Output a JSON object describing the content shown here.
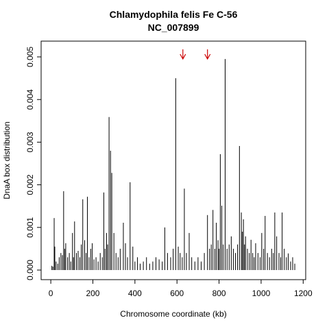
{
  "chart_data": {
    "type": "spike",
    "title": "Chlamydophila felis Fe C-56",
    "subtitle": "NC_007899",
    "x_label": "Chromosome coordinate (kb)",
    "y_label": "DnaA box distribution",
    "color": "#000000",
    "x": [
      5,
      10,
      16,
      19,
      25,
      33,
      40,
      48,
      55,
      61,
      66,
      71,
      80,
      88,
      95,
      103,
      108,
      113,
      122,
      130,
      138,
      145,
      152,
      161,
      168,
      174,
      182,
      190,
      197,
      205,
      215,
      225,
      235,
      245,
      252,
      258,
      265,
      270,
      277,
      284,
      290,
      300,
      310,
      320,
      330,
      345,
      355,
      365,
      377,
      390,
      400,
      412,
      425,
      440,
      455,
      470,
      485,
      500,
      515,
      530,
      542,
      555,
      570,
      582,
      594,
      606,
      615,
      625,
      635,
      645,
      658,
      670,
      685,
      700,
      715,
      730,
      745,
      755,
      763,
      771,
      780,
      787,
      795,
      800,
      806,
      813,
      820,
      829,
      838,
      848,
      858,
      868,
      878,
      888,
      897,
      906,
      911,
      916,
      921,
      926,
      935,
      944,
      952,
      960,
      967,
      974,
      985,
      995,
      1003,
      1012,
      1019,
      1030,
      1040,
      1050,
      1058,
      1065,
      1074,
      1085,
      1093,
      1100,
      1110,
      1120,
      1129,
      1140,
      1150,
      1160
    ],
    "values": [
      0.0001,
      8e-05,
      0.00122,
      0.00055,
      0.0002,
      0.00015,
      0.0003,
      0.0004,
      0.00035,
      0.00185,
      0.0005,
      0.00063,
      0.0003,
      0.0004,
      0.0002,
      0.00087,
      0.0003,
      0.00114,
      0.0004,
      0.00045,
      0.0003,
      0.0006,
      0.00166,
      0.0007,
      0.0004,
      0.00172,
      0.0003,
      0.0005,
      0.00063,
      0.00025,
      0.0003,
      0.0002,
      0.0004,
      0.0003,
      0.00182,
      0.0005,
      0.00087,
      0.0006,
      0.00359,
      0.0028,
      0.00228,
      0.00087,
      0.0004,
      0.0003,
      0.0005,
      0.00111,
      0.00063,
      0.0003,
      0.00206,
      0.00055,
      0.0002,
      0.0003,
      0.00015,
      0.0002,
      0.0003,
      0.00015,
      0.0002,
      0.0003,
      0.00025,
      0.0002,
      0.001,
      0.0004,
      0.0003,
      0.0005,
      0.0045,
      0.00055,
      0.0004,
      0.0003,
      0.00191,
      0.0004,
      0.00087,
      0.0003,
      0.0002,
      0.0003,
      0.0002,
      0.0004,
      0.00129,
      0.0005,
      0.0006,
      0.00141,
      0.0005,
      0.00111,
      0.0007,
      0.0005,
      0.00272,
      0.00151,
      0.0006,
      0.00495,
      0.0005,
      0.0006,
      0.00079,
      0.0005,
      0.0004,
      0.0006,
      0.00291,
      0.00135,
      0.0009,
      0.00119,
      0.0006,
      0.00079,
      0.0005,
      0.0004,
      0.00071,
      0.0004,
      0.0003,
      0.00063,
      0.0004,
      0.0003,
      0.00087,
      0.0005,
      0.00127,
      0.0004,
      0.0003,
      0.0005,
      0.0004,
      0.00135,
      0.00079,
      0.0004,
      0.0003,
      0.00135,
      0.0005,
      0.0003,
      0.00039,
      0.0002,
      0.0003,
      0.00015
    ],
    "arrows_x": [
      628,
      745
    ],
    "arrow_color": "#cc0000",
    "xlim": [
      -46,
      1212
    ],
    "ylim": [
      -0.000225,
      0.00537
    ],
    "xticks": [
      0,
      200,
      400,
      600,
      800,
      1000,
      1200
    ],
    "yticks": [
      {
        "value": 0,
        "label": "0.000"
      },
      0.001,
      0.002,
      0.003,
      0.004,
      0.005
    ]
  }
}
